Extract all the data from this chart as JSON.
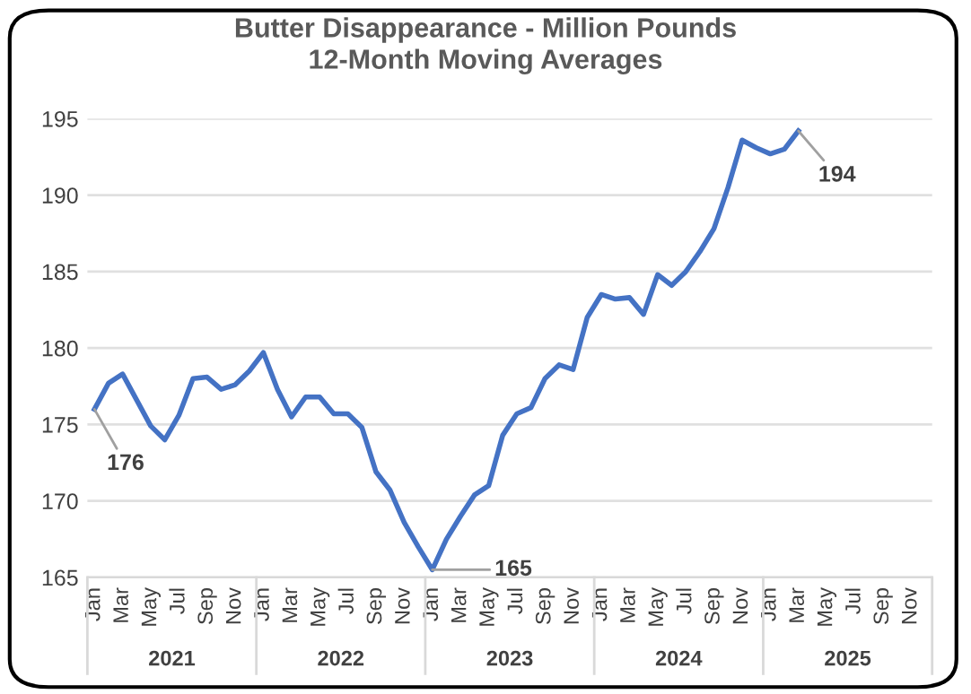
{
  "chart_data": {
    "type": "line",
    "title": "Butter Disappearance - Million Pounds\n12-Month Moving Averages",
    "categories": [
      "Jan",
      null,
      "Mar",
      null,
      "May",
      null,
      "Jul",
      null,
      "Sep",
      null,
      "Nov",
      null,
      "Jan",
      null,
      "Mar",
      null,
      "May",
      null,
      "Jul",
      null,
      "Sep",
      null,
      "Nov",
      null,
      "Jan",
      null,
      "Mar",
      null,
      "May",
      null,
      "Jul",
      null,
      "Sep",
      null,
      "Nov",
      null,
      "Jan",
      null,
      "Mar",
      null,
      "May",
      null,
      "Jul",
      null,
      "Sep",
      null,
      "Nov",
      null,
      "Jan",
      null,
      "Mar",
      null,
      "May",
      null,
      "Jul",
      null,
      "Sep",
      null,
      "Nov",
      null
    ],
    "annotations": [
      "2021",
      "2022",
      "2023",
      "2024",
      "2025"
    ],
    "series": [
      {
        "color": "#4472c4",
        "values": [
          176,
          177.7,
          178.3,
          176.6,
          174.9,
          174.0,
          175.6,
          178.0,
          178.1,
          177.3,
          177.6,
          178.5,
          179.7,
          177.3,
          175.5,
          176.8,
          176.8,
          175.7,
          175.7,
          174.8,
          171.9,
          170.7,
          168.6,
          167.0,
          165.5,
          167.5,
          169.0,
          170.4,
          171.0,
          174.3,
          175.7,
          176.1,
          178.0,
          178.9,
          178.6,
          182.0,
          183.5,
          183.2,
          183.3,
          182.2,
          184.8,
          184.1,
          185.0,
          186.3,
          187.8,
          190.5,
          193.6,
          193.1,
          192.7,
          193.0,
          194.2,
          null,
          null,
          null,
          null,
          null,
          null,
          null,
          null,
          null
        ],
        "value_labels": [
          "176",
          null,
          null,
          null,
          null,
          null,
          null,
          null,
          null,
          null,
          null,
          null,
          null,
          null,
          null,
          null,
          null,
          null,
          null,
          null,
          null,
          null,
          null,
          null,
          "165",
          null,
          null,
          null,
          null,
          null,
          null,
          null,
          null,
          null,
          null,
          null,
          null,
          null,
          null,
          null,
          null,
          null,
          null,
          null,
          null,
          null,
          null,
          null,
          null,
          null,
          "194",
          null,
          null,
          null,
          null,
          null,
          null,
          null,
          null,
          null
        ]
      }
    ],
    "ylim": [
      165,
      195
    ],
    "yticks": [
      165,
      170,
      175,
      180,
      185,
      190,
      195
    ],
    "grid": "y",
    "marker": "none",
    "line_style": "solid",
    "legend": false
  }
}
